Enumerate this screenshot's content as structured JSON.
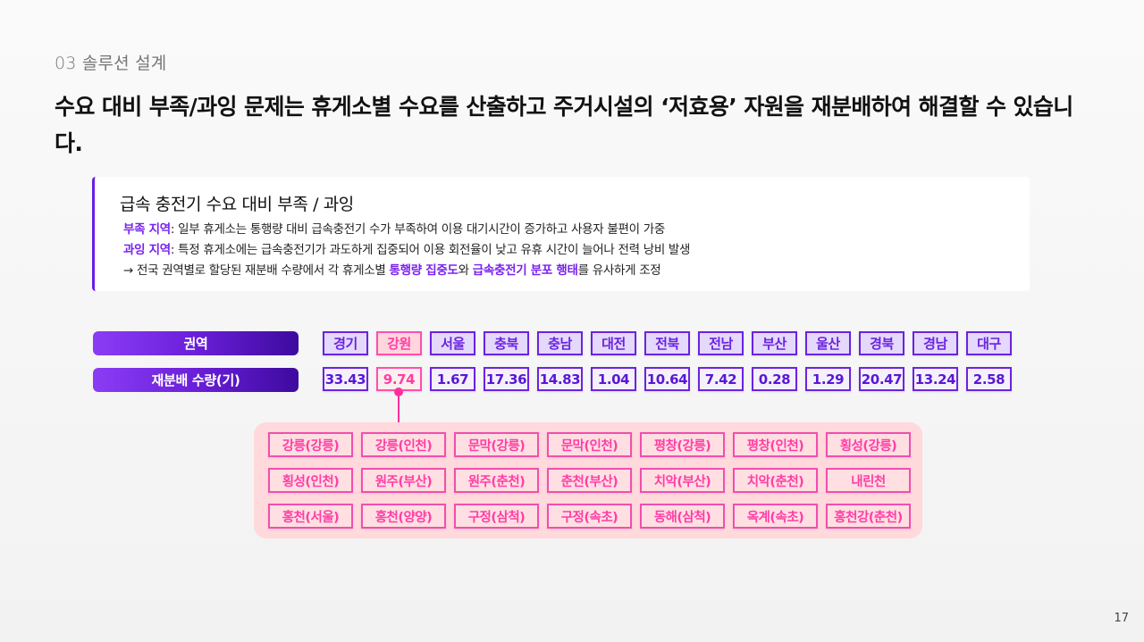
{
  "section": {
    "label": "03  솔루션 설계"
  },
  "headline": "수요 대비 부족/과잉 문제는 휴게소별 수요를 산출하고 주거시설의 ‘저효용’ 자원을 재분배하여 해결할 수 있습니다.",
  "callout": {
    "title": "급속 충전기 수요 대비 부족 / 과잉",
    "shortage": {
      "label": "부족 지역",
      "text": ": 일부 휴게소는 통행량 대비 급속충전기 수가 부족하여 이용 대기시간이 증가하고 사용자 불편이 가중"
    },
    "surplus": {
      "label": "과잉 지역",
      "text": ": 특정 휴게소에는 급속충전기가 과도하게 집중되어 이용 회전율이 낮고 유휴 시간이 늘어나 전력 낭비 발생"
    },
    "conclusion": {
      "prefix": "→ 전국 권역별로 할당된 재분배 수량에서 각 휴게소별 ",
      "hl1": "통행량 집중도",
      "mid": "와 ",
      "hl2": "급속충전기 분포 행태",
      "suffix": "를 유사하게 조정"
    }
  },
  "table": {
    "region_header": "권역",
    "value_header": "재분배 수량(기)",
    "regions": [
      "경기",
      "강원",
      "서울",
      "충북",
      "충남",
      "대전",
      "전북",
      "전남",
      "부산",
      "울산",
      "경북",
      "경남",
      "대구"
    ],
    "values": [
      "33.43",
      "9.74",
      "1.67",
      "17.36",
      "14.83",
      "1.04",
      "10.64",
      "7.42",
      "0.28",
      "1.29",
      "20.47",
      "13.24",
      "2.58"
    ],
    "highlighted_index": 1
  },
  "service_areas": [
    "강릉(강릉)",
    "강릉(인천)",
    "문막(강릉)",
    "문막(인천)",
    "평창(강릉)",
    "평창(인천)",
    "횡성(강릉)",
    "횡성(인천)",
    "원주(부산)",
    "원주(춘천)",
    "춘천(부산)",
    "치악(부산)",
    "치악(춘천)",
    "내린천",
    "홍천(서울)",
    "홍천(양양)",
    "구정(삼척)",
    "구정(속초)",
    "동해(삼척)",
    "옥계(속초)",
    "홍천강(춘천)"
  ],
  "colors": {
    "accent_purple": "#6b23e0",
    "accent_pink": "#ff3ea6",
    "panel_pink": "#ffd9dc"
  },
  "page_number": "17"
}
